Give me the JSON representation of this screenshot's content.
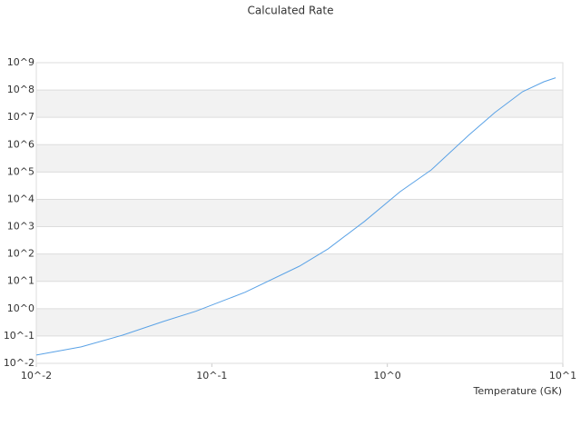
{
  "chart_data": {
    "type": "line",
    "title": "Calculated Rate",
    "x_label": "Temperature (GK)",
    "log_x": true,
    "log_y": true,
    "grid": true,
    "color": "#5aa2e6",
    "x": [
      0.01,
      0.018,
      0.031,
      0.053,
      0.081,
      0.155,
      0.316,
      0.46,
      0.74,
      1.18,
      1.78,
      2.9,
      4.1,
      5.9,
      7.8,
      9.1
    ],
    "values": [
      0.02,
      0.04,
      0.107,
      0.34,
      0.8,
      4,
      36,
      155,
      1550,
      19000,
      120000,
      2200000,
      15000000,
      87000000,
      200000000,
      280000000
    ],
    "xlim": [
      0.01,
      10
    ],
    "xticks": [
      {
        "value": 0.01,
        "label": "10^-2"
      },
      {
        "value": 0.1,
        "label": "10^-1"
      },
      {
        "value": 1,
        "label": "10^0"
      },
      {
        "value": 10,
        "label": "10^1"
      }
    ],
    "ylim": [
      0.01,
      1000000000
    ],
    "yticks": [
      {
        "value": 1000000000,
        "label": "10^9"
      },
      {
        "value": 100000000,
        "label": "10^8"
      },
      {
        "value": 10000000,
        "label": "10^7"
      },
      {
        "value": 1000000,
        "label": "10^6"
      },
      {
        "value": 100000,
        "label": "10^5"
      },
      {
        "value": 10000,
        "label": "10^4"
      },
      {
        "value": 1000,
        "label": "10^3"
      },
      {
        "value": 100,
        "label": "10^2"
      },
      {
        "value": 10,
        "label": "10^1"
      },
      {
        "value": 1,
        "label": "10^0"
      },
      {
        "value": 0.1,
        "label": "10^-1"
      },
      {
        "value": 0.01,
        "label": "10^-2"
      }
    ]
  }
}
